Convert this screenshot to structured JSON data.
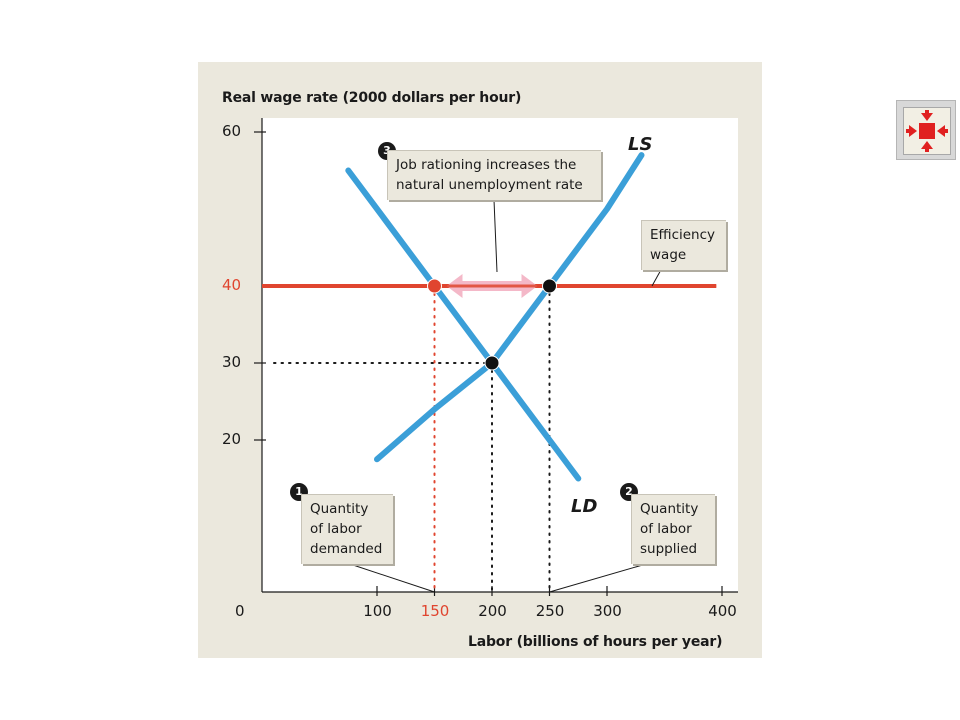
{
  "chart_data": {
    "type": "line",
    "xlabel": "Labor (billions of hours per year)",
    "ylabel": "Real wage rate (2000 dollars per hour)",
    "xlim": [
      0,
      400
    ],
    "ylim": [
      10,
      60
    ],
    "x_ticks": [
      "0",
      "100",
      "150",
      "200",
      "250",
      "300",
      "400"
    ],
    "y_ticks": [
      "20",
      "30",
      "40",
      "60"
    ],
    "series": [
      {
        "name": "LS",
        "points": [
          [
            100,
            17.5
          ],
          [
            150,
            24
          ],
          [
            200,
            30
          ],
          [
            250,
            40
          ],
          [
            300,
            50
          ],
          [
            330,
            57
          ]
        ]
      },
      {
        "name": "LD",
        "points": [
          [
            75,
            55
          ],
          [
            150,
            40
          ],
          [
            200,
            30
          ],
          [
            250,
            20
          ],
          [
            275,
            15
          ]
        ]
      },
      {
        "name": "Efficiency wage",
        "points": [
          [
            0,
            40
          ],
          [
            395,
            40
          ]
        ]
      }
    ],
    "points": [
      {
        "x": 150,
        "y": 40
      },
      {
        "x": 250,
        "y": 40
      },
      {
        "x": 200,
        "y": 30
      }
    ],
    "reference_lines": {
      "efficiency_wage": 40,
      "equilibrium_wage": 30,
      "quantity_demanded": 150,
      "equilibrium_quantity": 200,
      "quantity_supplied": 250
    },
    "annotations": [
      {
        "badge": "1",
        "text": "Quantity of labor demanded",
        "lines": [
          "Quantity",
          "of labor",
          "demanded"
        ]
      },
      {
        "badge": "2",
        "text": "Quantity of labor supplied",
        "lines": [
          "Quantity",
          "of labor",
          "supplied"
        ]
      },
      {
        "badge": "3",
        "text": "Job rationing increases the natural unemployment rate",
        "lines": [
          "Job rationing increases the",
          "natural unemployment rate"
        ]
      },
      {
        "badge": "",
        "text": "Efficiency wage",
        "lines": [
          "Efficiency",
          "wage"
        ]
      }
    ],
    "colors": {
      "curves": "#3b9fd8",
      "efficiency_wage": "#e0452f",
      "gap_arrow": "#f4b8c8",
      "panel": "#ebe8dd"
    },
    "grid": false
  },
  "nav": {
    "icon": "collapse-arrows-icon"
  }
}
